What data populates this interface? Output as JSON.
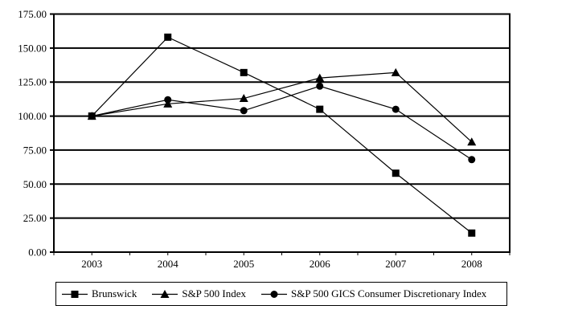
{
  "figure": {
    "background": "#ffffff",
    "ink_color": "#000000",
    "title": ""
  },
  "chart_data": {
    "type": "line",
    "title": "",
    "xlabel": "",
    "ylabel": "",
    "categories": [
      "2003",
      "2004",
      "2005",
      "2006",
      "2007",
      "2008"
    ],
    "series": [
      {
        "name": "Brunswick",
        "marker": "square",
        "values": [
          100,
          158,
          132,
          105,
          58,
          14
        ]
      },
      {
        "name": "S&P 500 Index",
        "marker": "triangle",
        "values": [
          100,
          109,
          113,
          128,
          132,
          81
        ]
      },
      {
        "name": "S&P 500 GICS Consumer Discretionary Index",
        "marker": "circle",
        "values": [
          100,
          112,
          104,
          122,
          105,
          68
        ]
      }
    ],
    "ylim": [
      0,
      175
    ],
    "ytick_step": 25,
    "ytick_labels": [
      "0.00",
      "25.00",
      "50.00",
      "75.00",
      "100.00",
      "125.00",
      "150.00",
      "175.00"
    ],
    "grid": "horizontal",
    "gridline_color": "#000000",
    "line_color": "#000000",
    "legend_position": "bottom",
    "plot_border": true
  }
}
